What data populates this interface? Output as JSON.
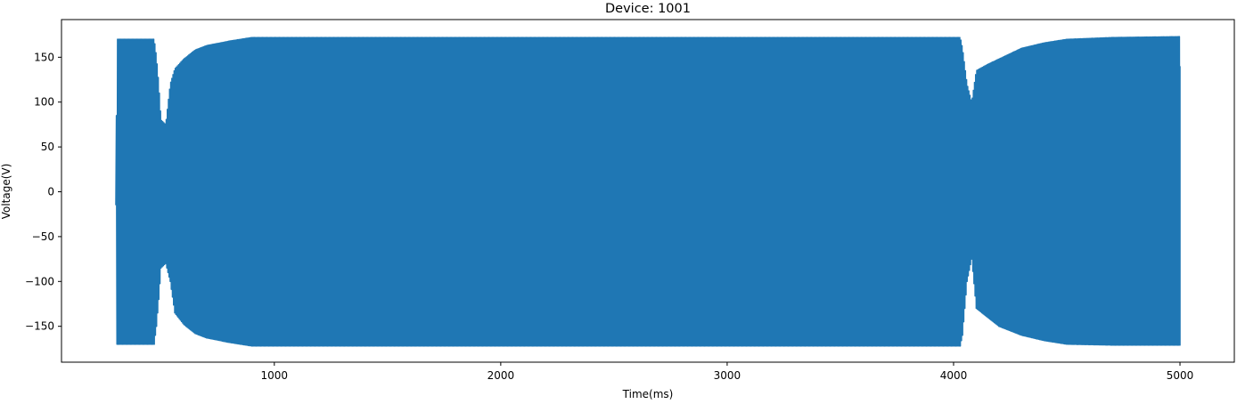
{
  "chart_data": {
    "type": "line",
    "title": "Device: 1001",
    "xlabel": "Time(ms)",
    "ylabel": "Voltage(V)",
    "xlim": [
      60,
      5240
    ],
    "ylim": [
      -190,
      192
    ],
    "xticks": [
      1000,
      2000,
      3000,
      4000,
      5000
    ],
    "yticks": [
      -150,
      -100,
      -50,
      0,
      50,
      100,
      150
    ],
    "grid": false,
    "legend": "none",
    "series": [
      {
        "color": "#1f77b4",
        "x_start": 300,
        "x_end": 5000,
        "samples_per_ms": 0.4,
        "envelope_peak": [
          [
            300,
            0
          ],
          [
            305,
            170
          ],
          [
            470,
            170
          ],
          [
            480,
            150
          ],
          [
            490,
            120
          ],
          [
            500,
            80
          ],
          [
            520,
            75
          ],
          [
            540,
            120
          ],
          [
            560,
            137
          ],
          [
            600,
            148
          ],
          [
            650,
            158
          ],
          [
            700,
            163
          ],
          [
            800,
            168
          ],
          [
            900,
            172
          ],
          [
            4030,
            172
          ],
          [
            4040,
            160
          ],
          [
            4060,
            120
          ],
          [
            4080,
            100
          ],
          [
            4100,
            135
          ],
          [
            4150,
            142
          ],
          [
            4200,
            148
          ],
          [
            4300,
            160
          ],
          [
            4400,
            166
          ],
          [
            4500,
            170
          ],
          [
            4700,
            172
          ],
          [
            5000,
            173
          ]
        ],
        "envelope_trough": [
          [
            300,
            -15
          ],
          [
            305,
            -170
          ],
          [
            470,
            -170
          ],
          [
            480,
            -150
          ],
          [
            490,
            -120
          ],
          [
            500,
            -85
          ],
          [
            520,
            -80
          ],
          [
            540,
            -100
          ],
          [
            560,
            -135
          ],
          [
            600,
            -148
          ],
          [
            650,
            -158
          ],
          [
            700,
            -163
          ],
          [
            800,
            -168
          ],
          [
            900,
            -172
          ],
          [
            4030,
            -172
          ],
          [
            4040,
            -160
          ],
          [
            4060,
            -100
          ],
          [
            4080,
            -75
          ],
          [
            4100,
            -130
          ],
          [
            4150,
            -140
          ],
          [
            4200,
            -150
          ],
          [
            4300,
            -160
          ],
          [
            4400,
            -166
          ],
          [
            4500,
            -170
          ],
          [
            4700,
            -171
          ],
          [
            5000,
            -171
          ]
        ],
        "final_value": 140
      }
    ]
  }
}
